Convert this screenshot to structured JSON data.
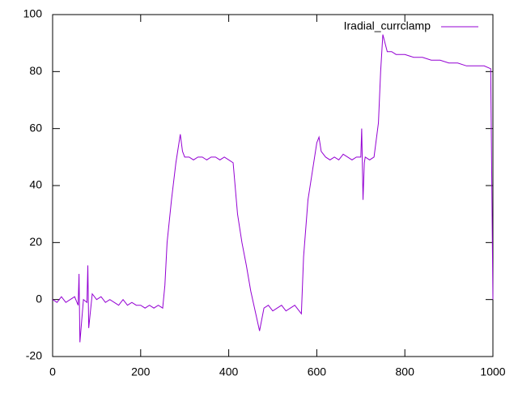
{
  "chart_data": {
    "type": "line",
    "x": [
      0,
      10,
      20,
      30,
      40,
      50,
      58,
      60,
      62,
      70,
      78,
      80,
      82,
      90,
      100,
      110,
      120,
      130,
      140,
      150,
      160,
      170,
      180,
      190,
      200,
      210,
      220,
      230,
      240,
      250,
      255,
      260,
      270,
      280,
      290,
      295,
      300,
      310,
      320,
      330,
      340,
      350,
      360,
      370,
      380,
      390,
      400,
      410,
      420,
      430,
      440,
      450,
      460,
      470,
      480,
      490,
      500,
      510,
      520,
      530,
      540,
      550,
      560,
      565,
      570,
      580,
      590,
      600,
      605,
      610,
      620,
      630,
      640,
      650,
      660,
      670,
      680,
      690,
      700,
      702,
      705,
      708,
      710,
      720,
      730,
      740,
      745,
      750,
      760,
      770,
      780,
      790,
      800,
      820,
      840,
      860,
      880,
      900,
      920,
      940,
      960,
      980,
      995,
      1000
    ],
    "series": [
      {
        "name": "Iradial_currclamp",
        "color": "#9400d3",
        "values": [
          0,
          -1,
          1,
          -1,
          0,
          1,
          -2,
          9,
          -15,
          0,
          -1,
          12,
          -10,
          2,
          0,
          1,
          -1,
          0,
          -1,
          -2,
          0,
          -2,
          -1,
          -2,
          -2,
          -3,
          -2,
          -3,
          -2,
          -3,
          5,
          20,
          35,
          48,
          58,
          52,
          50,
          50,
          49,
          50,
          50,
          49,
          50,
          50,
          49,
          50,
          49,
          48,
          30,
          20,
          12,
          3,
          -4,
          -11,
          -3,
          -2,
          -4,
          -3,
          -2,
          -4,
          -3,
          -2,
          -4,
          -5,
          15,
          35,
          45,
          55,
          57,
          52,
          50,
          49,
          50,
          49,
          51,
          50,
          49,
          50,
          50,
          60,
          35,
          48,
          50,
          49,
          50,
          62,
          80,
          93,
          87,
          87,
          86,
          86,
          86,
          85,
          85,
          84,
          84,
          83,
          83,
          82,
          82,
          82,
          81,
          0
        ]
      }
    ],
    "xlim": [
      0,
      1000
    ],
    "xticks": [
      0,
      200,
      400,
      600,
      800,
      1000
    ],
    "ylim": [
      -20,
      100
    ],
    "yticks": [
      -20,
      0,
      20,
      40,
      60,
      80,
      100
    ],
    "grid": false,
    "legend_position": "top-right"
  }
}
